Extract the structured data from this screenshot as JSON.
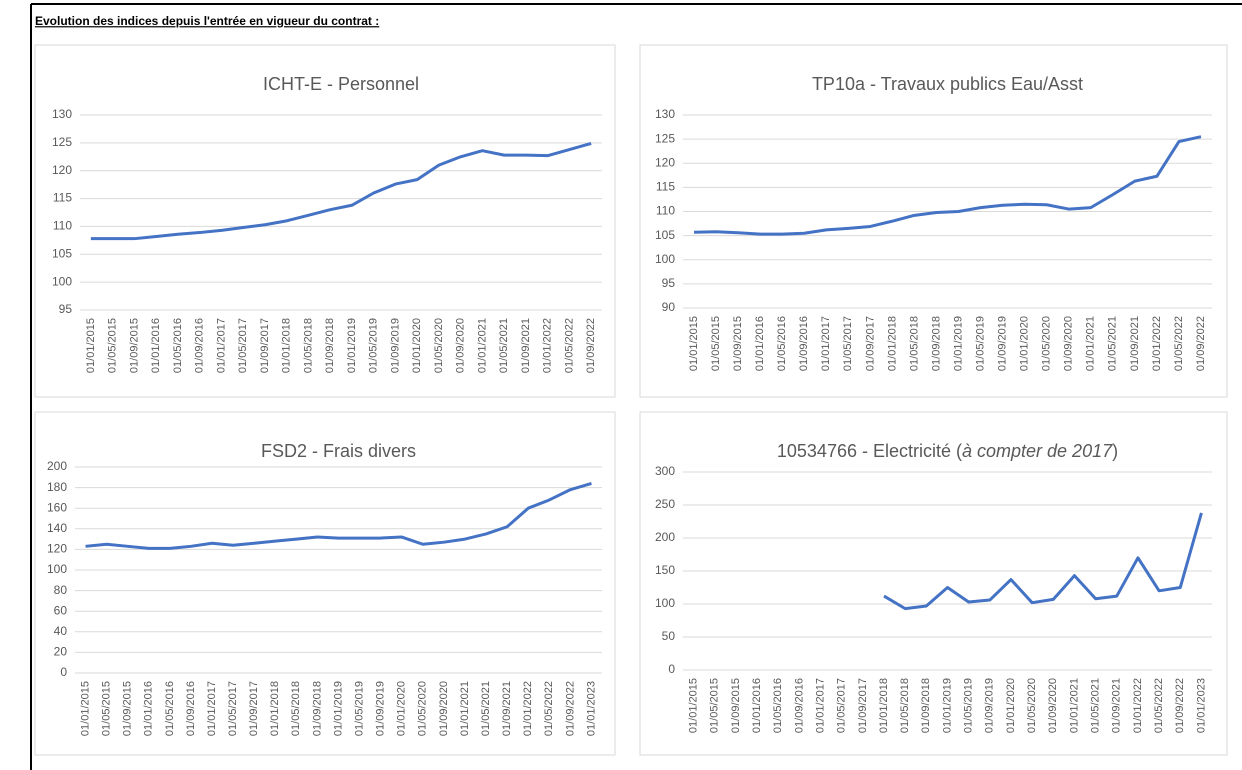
{
  "heading": "Evolution des indices depuis l'entrée en vigueur du contrat :",
  "chart_data": [
    {
      "type": "line",
      "title": "ICHT-E - Personnel",
      "categories": [
        "01/01/2015",
        "01/05/2015",
        "01/09/2015",
        "01/01/2016",
        "01/05/2016",
        "01/09/2016",
        "01/01/2017",
        "01/05/2017",
        "01/09/2017",
        "01/01/2018",
        "01/05/2018",
        "01/09/2018",
        "01/01/2019",
        "01/05/2019",
        "01/09/2019",
        "01/01/2020",
        "01/05/2020",
        "01/09/2020",
        "01/01/2021",
        "01/05/2021",
        "01/09/2021",
        "01/01/2022",
        "01/05/2022",
        "01/09/2022"
      ],
      "values": [
        107.8,
        107.8,
        107.8,
        108.2,
        108.6,
        108.9,
        109.3,
        109.8,
        110.3,
        111,
        112,
        113,
        113.8,
        116,
        117.6,
        118.4,
        121,
        122.5,
        123.6,
        122.8,
        122.8,
        122.7,
        123.8,
        124.9
      ],
      "color": "#4472c4",
      "ylim": [
        95,
        130
      ],
      "yticks": [
        95,
        100,
        105,
        110,
        115,
        120,
        125,
        130
      ],
      "grid": true
    },
    {
      "type": "line",
      "title": "TP10a - Travaux publics Eau/Asst",
      "categories": [
        "01/01/2015",
        "01/05/2015",
        "01/09/2015",
        "01/01/2016",
        "01/05/2016",
        "01/09/2016",
        "01/01/2017",
        "01/05/2017",
        "01/09/2017",
        "01/01/2018",
        "01/05/2018",
        "01/09/2018",
        "01/01/2019",
        "01/05/2019",
        "01/09/2019",
        "01/01/2020",
        "01/05/2020",
        "01/09/2020",
        "01/01/2021",
        "01/05/2021",
        "01/09/2021",
        "01/01/2022",
        "01/05/2022",
        "01/09/2022"
      ],
      "values": [
        105.7,
        105.8,
        105.6,
        105.3,
        105.3,
        105.5,
        106.2,
        106.5,
        106.9,
        108,
        109.2,
        109.8,
        110,
        110.8,
        111.3,
        111.5,
        111.4,
        110.5,
        110.8,
        113.5,
        116.3,
        117.3,
        124.5,
        125.5
      ],
      "color": "#4472c4",
      "ylim": [
        90,
        130
      ],
      "yticks": [
        90,
        95,
        100,
        105,
        110,
        115,
        120,
        125,
        130
      ],
      "grid": true
    },
    {
      "type": "line",
      "title": "FSD2 - Frais divers",
      "categories": [
        "01/01/2015",
        "01/05/2015",
        "01/09/2015",
        "01/01/2016",
        "01/05/2016",
        "01/09/2016",
        "01/01/2017",
        "01/05/2017",
        "01/09/2017",
        "01/01/2018",
        "01/05/2018",
        "01/09/2018",
        "01/01/2019",
        "01/05/2019",
        "01/09/2019",
        "01/01/2020",
        "01/05/2020",
        "01/09/2020",
        "01/01/2021",
        "01/05/2021",
        "01/09/2021",
        "01/01/2022",
        "01/05/2022",
        "01/09/2022",
        "01/01/2023"
      ],
      "values": [
        123,
        125,
        123,
        121,
        121,
        123,
        126,
        124,
        126,
        128,
        130,
        132,
        131,
        131,
        131,
        132,
        125,
        127,
        130,
        135,
        142,
        160,
        168,
        178,
        184
      ],
      "color": "#4472c4",
      "ylim": [
        0,
        200
      ],
      "yticks": [
        0,
        20,
        40,
        60,
        80,
        100,
        120,
        140,
        160,
        180,
        200
      ],
      "grid": true
    },
    {
      "type": "line",
      "title": [
        "10534766 - Electricité (",
        "à compter de 2017",
        ")"
      ],
      "categories": [
        "01/01/2015",
        "01/05/2015",
        "01/09/2015",
        "01/01/2016",
        "01/05/2016",
        "01/09/2016",
        "01/01/2017",
        "01/05/2017",
        "01/09/2017",
        "01/01/2018",
        "01/05/2018",
        "01/09/2018",
        "01/01/2019",
        "01/05/2019",
        "01/09/2019",
        "01/01/2020",
        "01/05/2020",
        "01/09/2020",
        "01/01/2021",
        "01/05/2021",
        "01/09/2021",
        "01/01/2022",
        "01/05/2022",
        "01/09/2022",
        "01/01/2023"
      ],
      "values": [
        null,
        null,
        null,
        null,
        null,
        null,
        null,
        null,
        null,
        112,
        93,
        97,
        125,
        103,
        106,
        137,
        102,
        107,
        143,
        108,
        112,
        170,
        120,
        125,
        238
      ],
      "color": "#4472c4",
      "ylim": [
        0,
        300
      ],
      "yticks": [
        0,
        50,
        100,
        150,
        200,
        250,
        300
      ],
      "grid": true
    }
  ]
}
